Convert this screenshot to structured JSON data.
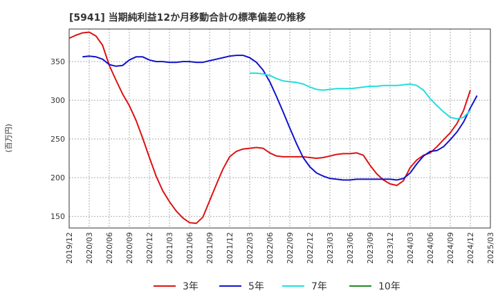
{
  "chart_data": {
    "type": "line",
    "title": "[5941]  当期純利益12か月移動合計の標準偏差の推移",
    "ylabel": "(百万円)",
    "xlabel": "",
    "ylim": [
      135,
      392
    ],
    "yticks": [
      150,
      200,
      250,
      300,
      350
    ],
    "x_tick_labels": [
      "2019/12",
      "2020/03",
      "2020/06",
      "2020/09",
      "2020/12",
      "2021/03",
      "2021/06",
      "2021/09",
      "2021/12",
      "2022/03",
      "2022/06",
      "2022/09",
      "2022/12",
      "2023/03",
      "2023/06",
      "2023/09",
      "2023/12",
      "2024/03",
      "2024/06",
      "2024/09",
      "2024/12",
      "2025/03"
    ],
    "x_start": "2019/12",
    "grid": true,
    "legend_position": "bottom",
    "series": [
      {
        "name": "3年",
        "color": "#dd1111",
        "start_month": 0,
        "values": [
          380,
          384,
          387,
          388,
          383,
          371,
          345,
          326,
          308,
          293,
          274,
          251,
          226,
          202,
          183,
          169,
          157,
          148,
          142,
          141,
          149,
          170,
          191,
          211,
          227,
          234,
          237,
          238,
          239,
          238,
          232,
          228,
          227,
          227,
          227,
          227,
          226,
          225,
          226,
          228,
          230,
          231,
          231,
          232,
          229,
          216,
          205,
          197,
          192,
          190,
          196,
          213,
          223,
          229,
          232,
          240,
          249,
          258,
          270,
          287,
          313
        ]
      },
      {
        "name": "5年",
        "color": "#1111cc",
        "start_month": 2,
        "values": [
          356,
          357,
          356,
          353,
          346,
          344,
          345,
          352,
          356,
          356,
          352,
          350,
          350,
          349,
          349,
          350,
          350,
          349,
          349,
          351,
          353,
          355,
          357,
          358,
          358,
          355,
          349,
          339,
          324,
          305,
          285,
          264,
          244,
          226,
          214,
          206,
          202,
          199,
          198,
          197,
          197,
          198,
          198,
          198,
          198,
          198,
          198,
          197,
          199,
          206,
          218,
          228,
          234,
          235,
          240,
          249,
          259,
          272,
          290,
          306
        ]
      },
      {
        "name": "7年",
        "color": "#22dddd",
        "start_month": 27,
        "values": [
          335,
          335,
          334,
          332,
          328,
          325,
          324,
          323,
          321,
          317,
          314,
          313,
          314,
          315,
          315,
          315,
          316,
          317,
          318,
          318,
          319,
          319,
          319,
          320,
          321,
          319,
          313,
          302,
          293,
          285,
          278,
          276,
          278,
          287
        ]
      },
      {
        "name": "10年",
        "color": "#228822",
        "start_month": 0,
        "values": []
      }
    ]
  }
}
